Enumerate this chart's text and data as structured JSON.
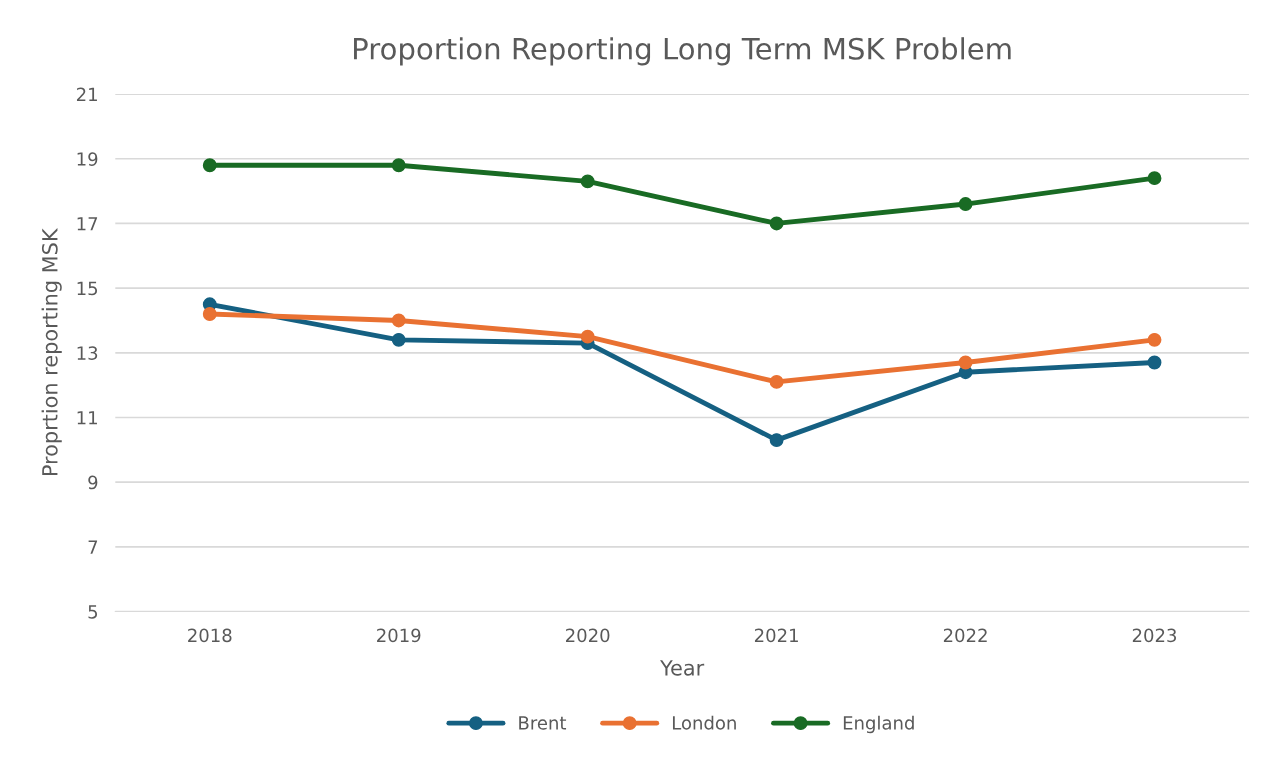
{
  "chart_data": {
    "type": "line",
    "title": "Proportion Reporting Long Term MSK Problem",
    "xlabel": "Year",
    "ylabel": "Proprtion reporting MSK",
    "categories": [
      "2018",
      "2019",
      "2020",
      "2021",
      "2022",
      "2023"
    ],
    "series": [
      {
        "name": "Brent",
        "color": "#156082",
        "values": [
          14.5,
          13.4,
          13.3,
          10.3,
          12.4,
          12.7
        ]
      },
      {
        "name": "London",
        "color": "#e97132",
        "values": [
          14.2,
          14.0,
          13.5,
          12.1,
          12.7,
          13.4
        ]
      },
      {
        "name": "England",
        "color": "#196b24",
        "values": [
          18.8,
          18.8,
          18.3,
          17.0,
          17.6,
          18.4
        ]
      }
    ],
    "ylim": [
      5,
      21
    ],
    "yticks": [
      5,
      7,
      9,
      11,
      13,
      15,
      17,
      19,
      21
    ],
    "grid": "y",
    "legend": "bottom",
    "marker": "circle",
    "line_style": "solid"
  }
}
